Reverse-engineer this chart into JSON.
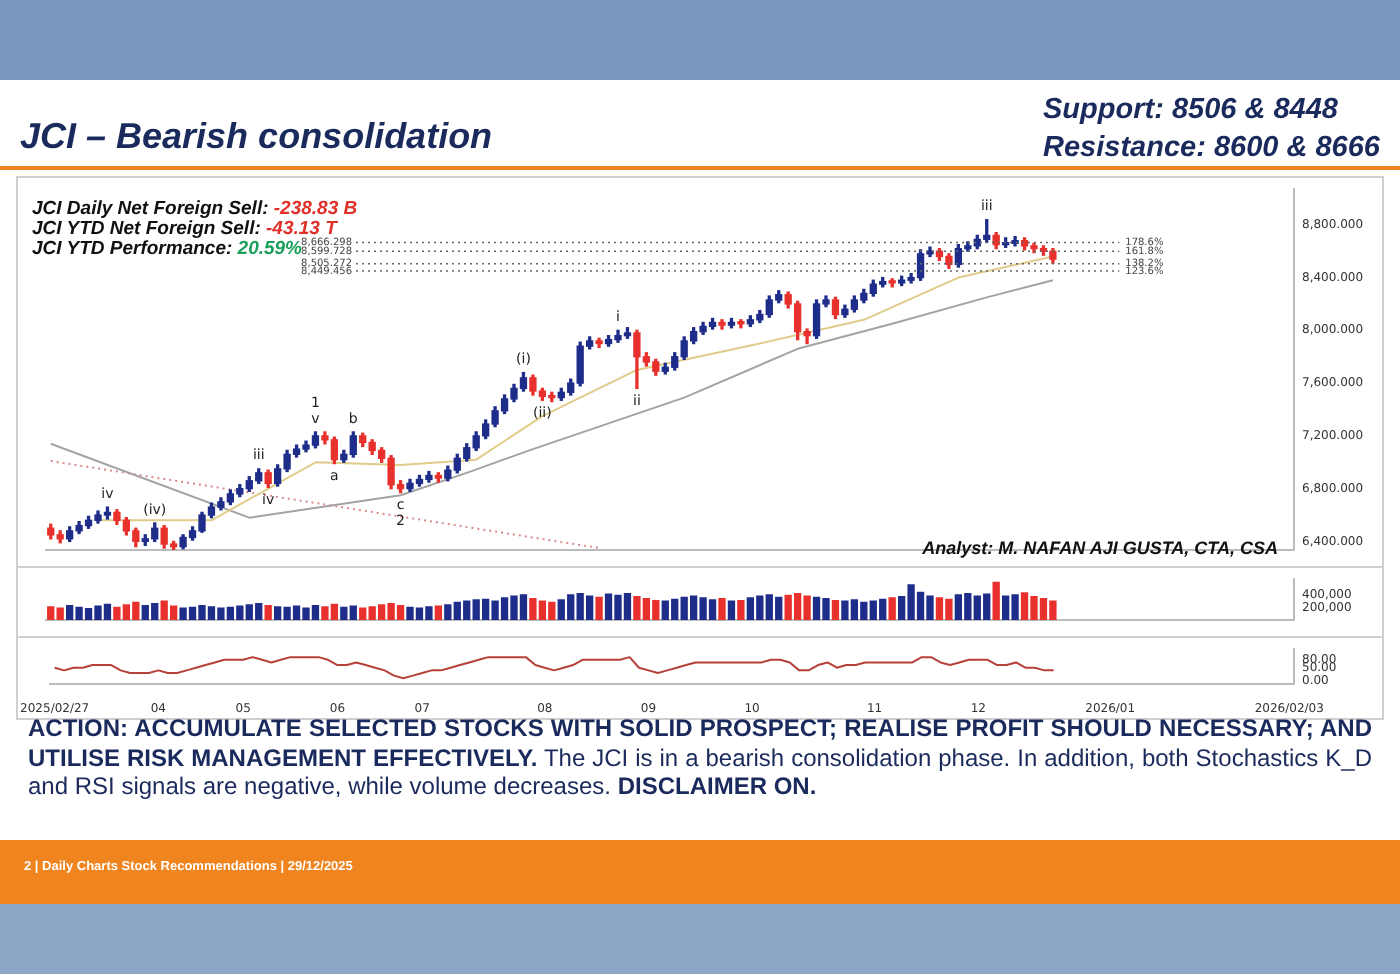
{
  "chart_data": [
    {
      "type": "candlestick",
      "title": "JCI – Bearish consolidation",
      "categories": [
        "2025/02/27",
        null,
        null,
        null,
        null,
        null,
        null,
        null,
        null,
        null,
        null,
        "04",
        null,
        null,
        null,
        null,
        null,
        null,
        null,
        null,
        "05",
        null,
        null,
        null,
        null,
        null,
        null,
        null,
        null,
        null,
        "06",
        null,
        null,
        null,
        null,
        null,
        null,
        null,
        null,
        "07",
        null,
        null,
        null,
        null,
        null,
        null,
        null,
        null,
        null,
        null,
        null,
        null,
        "08",
        null,
        null,
        null,
        null,
        null,
        null,
        null,
        null,
        null,
        null,
        "09",
        null,
        null,
        null,
        null,
        null,
        null,
        null,
        null,
        null,
        null,
        "10",
        null,
        null,
        null,
        null,
        null,
        null,
        null,
        null,
        null,
        null,
        null,
        null,
        "11",
        null,
        null,
        null,
        null,
        null,
        null,
        null,
        null,
        null,
        null,
        "12",
        null,
        null,
        null,
        null,
        null,
        null,
        null,
        null,
        null,
        null,
        null,
        null,
        null,
        "2026/01",
        null,
        null,
        null,
        null,
        null,
        null,
        null,
        null,
        null,
        null,
        null,
        null,
        null,
        null,
        null,
        null,
        null,
        null,
        "2026/02/03"
      ],
      "ohlc": [
        [
          6500,
          6530,
          6420,
          6450
        ],
        [
          6450,
          6480,
          6390,
          6420
        ],
        [
          6420,
          6510,
          6400,
          6480
        ],
        [
          6480,
          6550,
          6460,
          6520
        ],
        [
          6520,
          6590,
          6500,
          6560
        ],
        [
          6560,
          6630,
          6540,
          6600
        ],
        [
          6600,
          6660,
          6570,
          6620
        ],
        [
          6620,
          6640,
          6530,
          6560
        ],
        [
          6560,
          6580,
          6450,
          6480
        ],
        [
          6480,
          6500,
          6360,
          6400
        ],
        [
          6400,
          6450,
          6370,
          6420
        ],
        [
          6420,
          6540,
          6400,
          6500
        ],
        [
          6500,
          6520,
          6350,
          6380
        ],
        [
          6380,
          6400,
          6340,
          6360
        ],
        [
          6360,
          6450,
          6345,
          6430
        ],
        [
          6430,
          6510,
          6410,
          6480
        ],
        [
          6480,
          6620,
          6470,
          6600
        ],
        [
          6600,
          6690,
          6580,
          6660
        ],
        [
          6660,
          6730,
          6640,
          6700
        ],
        [
          6700,
          6790,
          6680,
          6760
        ],
        [
          6760,
          6830,
          6740,
          6800
        ],
        [
          6800,
          6890,
          6780,
          6860
        ],
        [
          6860,
          6950,
          6840,
          6920
        ],
        [
          6920,
          6940,
          6810,
          6840
        ],
        [
          6840,
          6980,
          6820,
          6950
        ],
        [
          6950,
          7090,
          6930,
          7060
        ],
        [
          7060,
          7130,
          7040,
          7100
        ],
        [
          7100,
          7160,
          7080,
          7130
        ],
        [
          7130,
          7230,
          7110,
          7200
        ],
        [
          7200,
          7230,
          7140,
          7170
        ],
        [
          7170,
          7190,
          6990,
          7020
        ],
        [
          7020,
          7090,
          7000,
          7060
        ],
        [
          7060,
          7230,
          7040,
          7200
        ],
        [
          7200,
          7220,
          7120,
          7150
        ],
        [
          7150,
          7170,
          7060,
          7090
        ],
        [
          7090,
          7110,
          7000,
          7030
        ],
        [
          7030,
          7050,
          6800,
          6830
        ],
        [
          6830,
          6860,
          6770,
          6800
        ],
        [
          6800,
          6870,
          6780,
          6840
        ],
        [
          6840,
          6900,
          6820,
          6870
        ],
        [
          6870,
          6930,
          6850,
          6900
        ],
        [
          6900,
          6920,
          6850,
          6880
        ],
        [
          6880,
          6970,
          6860,
          6940
        ],
        [
          6940,
          7060,
          6920,
          7030
        ],
        [
          7030,
          7140,
          7010,
          7110
        ],
        [
          7110,
          7230,
          7090,
          7200
        ],
        [
          7200,
          7320,
          7180,
          7290
        ],
        [
          7290,
          7420,
          7270,
          7390
        ],
        [
          7390,
          7510,
          7370,
          7480
        ],
        [
          7480,
          7590,
          7460,
          7560
        ],
        [
          7560,
          7680,
          7540,
          7640
        ],
        [
          7640,
          7660,
          7510,
          7540
        ],
        [
          7540,
          7560,
          7470,
          7500
        ],
        [
          7500,
          7530,
          7460,
          7490
        ],
        [
          7490,
          7560,
          7470,
          7530
        ],
        [
          7530,
          7630,
          7510,
          7600
        ],
        [
          7600,
          7910,
          7580,
          7880
        ],
        [
          7880,
          7950,
          7860,
          7920
        ],
        [
          7920,
          7940,
          7870,
          7900
        ],
        [
          7900,
          7960,
          7880,
          7930
        ],
        [
          7930,
          8000,
          7910,
          7960
        ],
        [
          7960,
          8020,
          7940,
          7980
        ],
        [
          7980,
          8000,
          7560,
          7800
        ],
        [
          7800,
          7830,
          7730,
          7760
        ],
        [
          7760,
          7780,
          7660,
          7690
        ],
        [
          7690,
          7750,
          7670,
          7720
        ],
        [
          7720,
          7830,
          7700,
          7800
        ],
        [
          7800,
          7950,
          7780,
          7920
        ],
        [
          7920,
          8020,
          7900,
          7990
        ],
        [
          7990,
          8060,
          7970,
          8030
        ],
        [
          8030,
          8090,
          8010,
          8060
        ],
        [
          8060,
          8080,
          8010,
          8040
        ],
        [
          8040,
          8090,
          8020,
          8060
        ],
        [
          8060,
          8080,
          8020,
          8050
        ],
        [
          8050,
          8110,
          8030,
          8080
        ],
        [
          8080,
          8150,
          8060,
          8120
        ],
        [
          8120,
          8260,
          8100,
          8230
        ],
        [
          8230,
          8300,
          8210,
          8270
        ],
        [
          8270,
          8290,
          8170,
          8200
        ],
        [
          8200,
          8220,
          7930,
          7990
        ],
        [
          7990,
          8010,
          7900,
          7960
        ],
        [
          7960,
          8230,
          7940,
          8200
        ],
        [
          8200,
          8260,
          8180,
          8230
        ],
        [
          8230,
          8250,
          8090,
          8120
        ],
        [
          8120,
          8190,
          8100,
          8160
        ],
        [
          8160,
          8260,
          8140,
          8230
        ],
        [
          8230,
          8310,
          8210,
          8280
        ],
        [
          8280,
          8380,
          8260,
          8350
        ],
        [
          8350,
          8400,
          8330,
          8370
        ],
        [
          8370,
          8390,
          8330,
          8360
        ],
        [
          8360,
          8410,
          8340,
          8380
        ],
        [
          8380,
          8430,
          8360,
          8400
        ],
        [
          8400,
          8610,
          8380,
          8580
        ],
        [
          8580,
          8630,
          8560,
          8600
        ],
        [
          8600,
          8620,
          8530,
          8560
        ],
        [
          8560,
          8580,
          8470,
          8500
        ],
        [
          8500,
          8650,
          8480,
          8620
        ],
        [
          8620,
          8670,
          8600,
          8640
        ],
        [
          8640,
          8720,
          8620,
          8690
        ],
        [
          8690,
          8840,
          8670,
          8720
        ],
        [
          8720,
          8740,
          8620,
          8650
        ],
        [
          8650,
          8700,
          8630,
          8660
        ],
        [
          8660,
          8710,
          8640,
          8680
        ],
        [
          8680,
          8700,
          8610,
          8640
        ],
        [
          8640,
          8660,
          8590,
          8620
        ],
        [
          8620,
          8640,
          8570,
          8600
        ],
        [
          8600,
          8620,
          8510,
          8540
        ],
        null,
        null,
        null,
        null,
        null,
        null,
        null,
        null,
        null,
        null,
        null,
        null,
        null,
        null,
        null,
        null,
        null,
        null,
        null,
        null,
        null,
        null,
        null,
        null,
        null
      ],
      "colors": [
        "#e8312c",
        "#e8312c",
        "#1f2d8a",
        "#1f2d8a",
        "#1f2d8a",
        "#1f2d8a",
        "#1f2d8a",
        "#e8312c",
        "#e8312c",
        "#e8312c",
        "#1f2d8a",
        "#1f2d8a",
        "#e8312c",
        "#e8312c",
        "#1f2d8a",
        "#1f2d8a",
        "#1f2d8a",
        "#1f2d8a",
        "#1f2d8a",
        "#1f2d8a",
        "#1f2d8a",
        "#1f2d8a",
        "#1f2d8a",
        "#e8312c",
        "#1f2d8a",
        "#1f2d8a",
        "#1f2d8a",
        "#1f2d8a",
        "#1f2d8a",
        "#e8312c",
        "#e8312c",
        "#1f2d8a",
        "#1f2d8a",
        "#e8312c",
        "#e8312c",
        "#e8312c",
        "#e8312c",
        "#e8312c",
        "#1f2d8a",
        "#1f2d8a",
        "#1f2d8a",
        "#e8312c",
        "#1f2d8a",
        "#1f2d8a",
        "#1f2d8a",
        "#1f2d8a",
        "#1f2d8a",
        "#1f2d8a",
        "#1f2d8a",
        "#1f2d8a",
        "#1f2d8a",
        "#e8312c",
        "#e8312c",
        "#e8312c",
        "#1f2d8a",
        "#1f2d8a",
        "#1f2d8a",
        "#1f2d8a",
        "#e8312c",
        "#1f2d8a",
        "#1f2d8a",
        "#1f2d8a",
        "#e8312c",
        "#e8312c",
        "#e8312c",
        "#1f2d8a",
        "#1f2d8a",
        "#1f2d8a",
        "#1f2d8a",
        "#1f2d8a",
        "#1f2d8a",
        "#e8312c",
        "#1f2d8a",
        "#e8312c",
        "#1f2d8a",
        "#1f2d8a",
        "#1f2d8a",
        "#1f2d8a",
        "#e8312c",
        "#e8312c",
        "#e8312c",
        "#1f2d8a",
        "#1f2d8a",
        "#e8312c",
        "#1f2d8a",
        "#1f2d8a",
        "#1f2d8a",
        "#1f2d8a",
        "#1f2d8a",
        "#e8312c",
        "#1f2d8a",
        "#1f2d8a",
        "#1f2d8a",
        "#1f2d8a",
        "#e8312c",
        "#e8312c",
        "#1f2d8a",
        "#1f2d8a",
        "#1f2d8a",
        "#1f2d8a",
        "#e8312c",
        "#1f2d8a",
        "#1f2d8a",
        "#e8312c",
        "#e8312c",
        "#e8312c",
        "#e8312c",
        null,
        null,
        null,
        null,
        null,
        null,
        null,
        null,
        null,
        null,
        null,
        null,
        null,
        null,
        null,
        null,
        null,
        null,
        null,
        null,
        null,
        null,
        null,
        null,
        null
      ],
      "value_labels": [
        null,
        null,
        null,
        null,
        null,
        null,
        "iv",
        null,
        null,
        null,
        null,
        "(iv)",
        null,
        null,
        null,
        null,
        null,
        null,
        null,
        null,
        null,
        null,
        "iii",
        "iv",
        null,
        null,
        null,
        null,
        "1\nv",
        null,
        "a",
        null,
        "b",
        null,
        null,
        null,
        null,
        "c\n2",
        null,
        null,
        null,
        null,
        null,
        null,
        null,
        null,
        null,
        null,
        null,
        null,
        "(i)",
        null,
        "(ii)",
        null,
        null,
        null,
        null,
        null,
        null,
        null,
        "i",
        null,
        "ii",
        null,
        null,
        null,
        null,
        null,
        null,
        null,
        null,
        null,
        null,
        null,
        null,
        null,
        null,
        null,
        null,
        null,
        null,
        null,
        null,
        null,
        null,
        null,
        null,
        null,
        null,
        null,
        null,
        null,
        null,
        null,
        null,
        null,
        null,
        null,
        null,
        "iii",
        null,
        null,
        null,
        null,
        null,
        null,
        null,
        null,
        null,
        null,
        null,
        null,
        null,
        null,
        null,
        null,
        null,
        null,
        null,
        null,
        null,
        null,
        null,
        null,
        null,
        null,
        null,
        null,
        null,
        null,
        null,
        null
      ],
      "series": [
        {
          "type": "line",
          "color": "#e0cc8a",
          "values": [
            null,
            null,
            null,
            null,
            null,
            6560,
            null,
            null,
            null,
            null,
            null,
            null,
            null,
            null,
            null,
            null,
            null,
            6560,
            null,
            null,
            null,
            null,
            null,
            null,
            null,
            null,
            null,
            null,
            7000,
            null,
            null,
            null,
            null,
            null,
            null,
            null,
            null,
            6980,
            null,
            null,
            null,
            null,
            null,
            null,
            null,
            7020,
            null,
            null,
            null,
            null,
            null,
            null,
            7350,
            null,
            null,
            null,
            null,
            null,
            null,
            null,
            null,
            null,
            7700,
            null,
            null,
            null,
            null,
            null,
            null,
            null,
            null,
            null,
            null,
            null,
            null,
            7900,
            null,
            null,
            null,
            null,
            null,
            null,
            null,
            null,
            null,
            null,
            8080,
            null,
            null,
            null,
            null,
            null,
            null,
            null,
            null,
            null,
            8400,
            null,
            null,
            null,
            null,
            null,
            null,
            null,
            null,
            null,
            8560,
            null,
            null,
            null,
            null,
            null,
            null,
            null,
            null,
            null,
            null,
            null,
            null,
            null,
            null,
            null,
            null,
            null,
            null,
            null,
            null,
            null,
            null,
            null,
            null,
            null
          ]
        },
        {
          "type": "line",
          "color": "#a3a3a3",
          "values": [
            7140,
            null,
            null,
            null,
            null,
            null,
            null,
            null,
            null,
            null,
            null,
            null,
            null,
            null,
            null,
            null,
            null,
            null,
            null,
            null,
            null,
            6580,
            null,
            null,
            null,
            null,
            null,
            null,
            null,
            null,
            null,
            null,
            null,
            null,
            null,
            null,
            null,
            6750,
            null,
            null,
            null,
            null,
            null,
            null,
            6920,
            null,
            null,
            null,
            null,
            null,
            null,
            7100,
            null,
            null,
            null,
            null,
            null,
            null,
            null,
            null,
            null,
            null,
            null,
            null,
            null,
            null,
            null,
            7490,
            null,
            null,
            null,
            null,
            null,
            null,
            null,
            null,
            null,
            null,
            null,
            7860,
            null,
            null,
            null,
            null,
            null,
            null,
            null,
            null,
            null,
            8050,
            null,
            null,
            null,
            null,
            null,
            null,
            null,
            null,
            null,
            8250,
            null,
            null,
            null,
            null,
            null,
            null,
            8380,
            null,
            null,
            null,
            null,
            null,
            null,
            null,
            null,
            null,
            null,
            null,
            null,
            null,
            null,
            null,
            null,
            null,
            null,
            null,
            null,
            null,
            null,
            null,
            null,
            null
          ]
        },
        {
          "type": "line",
          "color": "#d98a8a",
          "line_style": "dotted",
          "values": [
            7010,
            null,
            null,
            null,
            null,
            null,
            null,
            null,
            null,
            null,
            null,
            null,
            null,
            null,
            null,
            null,
            null,
            null,
            null,
            null,
            null,
            null,
            null,
            null,
            null,
            null,
            null,
            null,
            null,
            null,
            null,
            null,
            null,
            null,
            null,
            null,
            null,
            null,
            null,
            null,
            null,
            null,
            null,
            null,
            null,
            null,
            null,
            null,
            null,
            null,
            null,
            null,
            null,
            null,
            null,
            null,
            null,
            null,
            6350,
            null,
            null,
            null,
            null,
            null,
            null,
            null,
            null,
            null,
            null,
            null,
            null,
            null,
            null,
            null,
            null,
            null,
            null,
            null,
            null,
            null,
            null,
            null,
            null,
            null,
            null,
            null,
            null,
            null,
            null,
            null,
            null,
            null,
            null,
            null,
            null,
            null,
            null,
            null,
            null,
            null,
            null,
            null,
            null,
            null,
            null,
            null,
            null,
            null,
            null,
            null,
            null,
            null,
            null,
            null,
            null,
            null,
            null,
            null,
            null,
            null,
            null,
            null,
            null,
            null,
            null,
            null,
            null,
            null,
            null,
            null,
            null,
            null
          ]
        }
      ],
      "ylim": [
        6335,
        9070
      ],
      "yticks": [
        {
          "value": 6400,
          "label": "6,400.000"
        },
        {
          "value": 6800,
          "label": "6,800.000"
        },
        {
          "value": 7200,
          "label": "7,200.000"
        },
        {
          "value": 7600,
          "label": "7,600.000"
        },
        {
          "value": 8000,
          "label": "8,000.000"
        },
        {
          "value": 8400,
          "label": "8,400.000"
        },
        {
          "value": 8800,
          "label": "8,800.000"
        }
      ],
      "ref_lines": [
        {
          "axis": "y",
          "value": 8666.298,
          "label": "8,666.298",
          "color": "#666666",
          "line_style": "dotted"
        },
        {
          "axis": "y",
          "value": 8599.728,
          "label": "8,599.728",
          "color": "#666666",
          "line_style": "dotted"
        },
        {
          "axis": "y",
          "value": 8505.272,
          "label": "8,505.272",
          "color": "#666666",
          "line_style": "dotted"
        },
        {
          "axis": "y",
          "value": 8449.456,
          "label": "8,449.456",
          "color": "#666666",
          "line_style": "dotted"
        }
      ],
      "annotations": [
        "Support: 8506 & 8448",
        "Resistance: 8600 & 8666",
        "JCI Daily Net Foreign Sell: -238.83 B",
        "JCI YTD Net Foreign Sell: -43.13 T",
        "JCI YTD Performance: 20.59%",
        "Analyst: M. NAFAN AJI GUSTA, CTA, CSA",
        "ACTION: ACCUMULATE SELECTED STOCKS WITH SOLID PROSPECT; REALISE PROFIT SHOULD NECESSARY; AND UTILISE RISK MANAGEMENT EFFECTIVELY.",
        "The JCI is in a bearish consolidation phase. In addition, both Stochastics K_D and RSI signals are negative, while volume decreases.",
        "DISCLAIMER ON.",
        "2 | Daily Charts Stock Recommendations | 29/12/2025",
        "178.6%",
        "161.8%",
        "138.2%",
        "123.6%"
      ],
      "tick_labels": "y"
    },
    {
      "type": "bar",
      "categories": [
        "2025/02/27",
        null,
        null,
        null,
        null,
        null,
        null,
        null,
        null,
        null,
        null,
        "04",
        null,
        null,
        null,
        null,
        null,
        null,
        null,
        null,
        "05",
        null,
        null,
        null,
        null,
        null,
        null,
        null,
        null,
        null,
        "06",
        null,
        null,
        null,
        null,
        null,
        null,
        null,
        null,
        "07",
        null,
        null,
        null,
        null,
        null,
        null,
        null,
        null,
        null,
        null,
        null,
        null,
        "08",
        null,
        null,
        null,
        null,
        null,
        null,
        null,
        null,
        null,
        null,
        "09",
        null,
        null,
        null,
        null,
        null,
        null,
        null,
        null,
        null,
        null,
        "10",
        null,
        null,
        null,
        null,
        null,
        null,
        null,
        null,
        null,
        null,
        null,
        null,
        "11",
        null,
        null,
        null,
        null,
        null,
        null,
        null,
        null,
        null,
        null,
        "12",
        null,
        null,
        null,
        null,
        null,
        null,
        null,
        null,
        null,
        null,
        null,
        null,
        null,
        "2026/01",
        null,
        null,
        null,
        null,
        null,
        null,
        null,
        null,
        null,
        null,
        null,
        null,
        null,
        null,
        null,
        null,
        null,
        null,
        "2026/02/03"
      ],
      "values": [
        210000,
        190000,
        230000,
        200000,
        180000,
        220000,
        250000,
        200000,
        240000,
        280000,
        230000,
        260000,
        300000,
        220000,
        190000,
        200000,
        230000,
        210000,
        190000,
        200000,
        220000,
        240000,
        260000,
        230000,
        210000,
        200000,
        220000,
        190000,
        230000,
        210000,
        250000,
        200000,
        220000,
        190000,
        210000,
        240000,
        260000,
        230000,
        200000,
        190000,
        210000,
        220000,
        240000,
        280000,
        300000,
        320000,
        330000,
        300000,
        350000,
        380000,
        400000,
        340000,
        300000,
        280000,
        320000,
        400000,
        420000,
        380000,
        360000,
        410000,
        390000,
        420000,
        370000,
        340000,
        310000,
        300000,
        330000,
        360000,
        380000,
        350000,
        320000,
        340000,
        300000,
        310000,
        350000,
        380000,
        400000,
        360000,
        390000,
        420000,
        380000,
        360000,
        340000,
        310000,
        300000,
        320000,
        280000,
        300000,
        330000,
        350000,
        370000,
        560000,
        440000,
        380000,
        350000,
        330000,
        400000,
        420000,
        380000,
        410000,
        600000,
        380000,
        400000,
        430000,
        370000,
        340000,
        300000,
        null,
        null,
        null,
        null,
        null,
        null,
        null,
        null,
        null,
        null,
        null,
        null,
        null,
        null,
        null,
        null,
        null,
        null,
        null,
        null,
        null,
        null,
        null,
        null,
        null
      ],
      "colors": [
        "#e8312c",
        "#e8312c",
        "#1f2d8a",
        "#1f2d8a",
        "#1f2d8a",
        "#1f2d8a",
        "#1f2d8a",
        "#e8312c",
        "#e8312c",
        "#e8312c",
        "#1f2d8a",
        "#1f2d8a",
        "#e8312c",
        "#e8312c",
        "#1f2d8a",
        "#1f2d8a",
        "#1f2d8a",
        "#1f2d8a",
        "#1f2d8a",
        "#1f2d8a",
        "#1f2d8a",
        "#1f2d8a",
        "#1f2d8a",
        "#e8312c",
        "#1f2d8a",
        "#1f2d8a",
        "#1f2d8a",
        "#1f2d8a",
        "#1f2d8a",
        "#e8312c",
        "#e8312c",
        "#1f2d8a",
        "#1f2d8a",
        "#e8312c",
        "#e8312c",
        "#e8312c",
        "#e8312c",
        "#e8312c",
        "#1f2d8a",
        "#1f2d8a",
        "#1f2d8a",
        "#e8312c",
        "#1f2d8a",
        "#1f2d8a",
        "#1f2d8a",
        "#1f2d8a",
        "#1f2d8a",
        "#1f2d8a",
        "#1f2d8a",
        "#1f2d8a",
        "#1f2d8a",
        "#e8312c",
        "#e8312c",
        "#e8312c",
        "#1f2d8a",
        "#1f2d8a",
        "#1f2d8a",
        "#1f2d8a",
        "#e8312c",
        "#1f2d8a",
        "#1f2d8a",
        "#1f2d8a",
        "#e8312c",
        "#e8312c",
        "#e8312c",
        "#1f2d8a",
        "#1f2d8a",
        "#1f2d8a",
        "#1f2d8a",
        "#1f2d8a",
        "#1f2d8a",
        "#e8312c",
        "#1f2d8a",
        "#e8312c",
        "#1f2d8a",
        "#1f2d8a",
        "#1f2d8a",
        "#1f2d8a",
        "#e8312c",
        "#e8312c",
        "#e8312c",
        "#1f2d8a",
        "#1f2d8a",
        "#e8312c",
        "#1f2d8a",
        "#1f2d8a",
        "#1f2d8a",
        "#1f2d8a",
        "#1f2d8a",
        "#e8312c",
        "#1f2d8a",
        "#1f2d8a",
        "#1f2d8a",
        "#1f2d8a",
        "#e8312c",
        "#e8312c",
        "#1f2d8a",
        "#1f2d8a",
        "#1f2d8a",
        "#1f2d8a",
        "#e8312c",
        "#1f2d8a",
        "#1f2d8a",
        "#e8312c",
        "#e8312c",
        "#e8312c",
        "#e8312c",
        null,
        null,
        null,
        null,
        null,
        null,
        null,
        null,
        null,
        null,
        null,
        null,
        null,
        null,
        null,
        null,
        null,
        null,
        null,
        null,
        null,
        null,
        null,
        null,
        null
      ],
      "ylim": [
        0,
        650000
      ],
      "yticks": [
        {
          "value": 200000,
          "label": "200,000"
        },
        {
          "value": 400000,
          "label": "400,000"
        }
      ],
      "tick_labels": "y"
    },
    {
      "type": "line",
      "categories": [
        "2025/02/27",
        null,
        null,
        null,
        null,
        null,
        null,
        null,
        null,
        null,
        null,
        "04",
        null,
        null,
        null,
        null,
        null,
        null,
        null,
        null,
        "05",
        null,
        null,
        null,
        null,
        null,
        null,
        null,
        null,
        null,
        "06",
        null,
        null,
        null,
        null,
        null,
        null,
        null,
        null,
        "07",
        null,
        null,
        null,
        null,
        null,
        null,
        null,
        null,
        null,
        null,
        null,
        null,
        "08",
        null,
        null,
        null,
        null,
        null,
        null,
        null,
        null,
        null,
        null,
        "09",
        null,
        null,
        null,
        null,
        null,
        null,
        null,
        null,
        null,
        null,
        "10",
        null,
        null,
        null,
        null,
        null,
        null,
        null,
        null,
        null,
        null,
        null,
        null,
        "11",
        null,
        null,
        null,
        null,
        null,
        null,
        null,
        null,
        null,
        null,
        "12",
        null,
        null,
        null,
        null,
        null,
        null,
        null,
        null,
        null,
        null,
        null,
        null,
        null,
        "2026/01",
        null,
        null,
        null,
        null,
        null,
        null,
        null,
        null,
        null,
        null,
        null,
        null,
        null,
        null,
        null,
        null,
        null,
        null,
        "2026/02/03"
      ],
      "values": [
        50,
        40,
        50,
        50,
        60,
        60,
        60,
        40,
        30,
        30,
        30,
        40,
        30,
        30,
        40,
        50,
        60,
        70,
        80,
        80,
        80,
        90,
        80,
        70,
        80,
        90,
        90,
        90,
        90,
        80,
        60,
        60,
        70,
        60,
        50,
        40,
        20,
        10,
        20,
        30,
        40,
        40,
        50,
        60,
        70,
        80,
        90,
        90,
        90,
        90,
        90,
        60,
        50,
        40,
        50,
        60,
        80,
        80,
        80,
        80,
        80,
        90,
        50,
        40,
        30,
        40,
        50,
        60,
        70,
        70,
        70,
        70,
        70,
        70,
        70,
        70,
        80,
        80,
        70,
        40,
        40,
        60,
        70,
        50,
        60,
        60,
        70,
        70,
        70,
        70,
        70,
        70,
        90,
        90,
        70,
        60,
        70,
        80,
        80,
        80,
        60,
        60,
        70,
        50,
        50,
        40,
        40,
        null,
        null,
        null,
        null,
        null,
        null,
        null,
        null,
        null,
        null,
        null,
        null,
        null,
        null,
        null,
        null,
        null,
        null,
        null,
        null,
        null,
        null,
        null,
        null,
        null
      ],
      "color": "#b5413a",
      "ylim": [
        -10,
        120
      ],
      "yticks": [
        {
          "value": 0,
          "label": "0.00"
        },
        {
          "value": 50,
          "label": "50.00"
        },
        {
          "value": 80,
          "label": "80.00"
        }
      ]
    }
  ]
}
